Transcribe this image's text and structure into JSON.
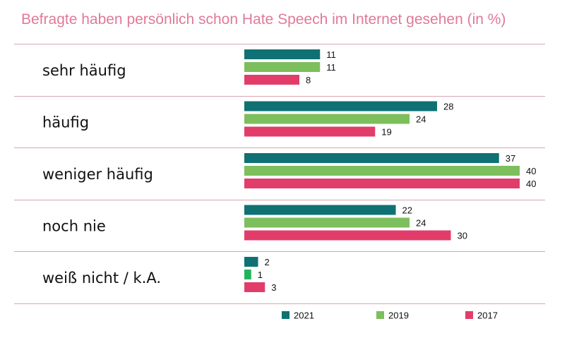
{
  "title": "Befragte haben persönlich schon Hate Speech im Internet gesehen (in %)",
  "chart_data": {
    "type": "bar",
    "orientation": "horizontal",
    "title": "Befragte haben persönlich schon Hate Speech im Internet gesehen (in %)",
    "categories": [
      "sehr häufig",
      "häufig",
      "weniger häufig",
      "noch nie",
      "weiß nicht / k.A."
    ],
    "series": [
      {
        "name": "2021",
        "color": "#0f7173",
        "values": [
          11,
          28,
          37,
          22,
          2
        ]
      },
      {
        "name": "2019",
        "color": "#7cbf5c",
        "values": [
          11,
          24,
          40,
          24,
          1
        ],
        "value_colors": {
          "4": "#22b35a"
        }
      },
      {
        "name": "2017",
        "color": "#e23d6a",
        "values": [
          8,
          19,
          40,
          30,
          3
        ]
      }
    ],
    "xlim": [
      0,
      40
    ],
    "legend_position": "bottom",
    "grid": false,
    "separator_color": "#d9a6b3"
  }
}
